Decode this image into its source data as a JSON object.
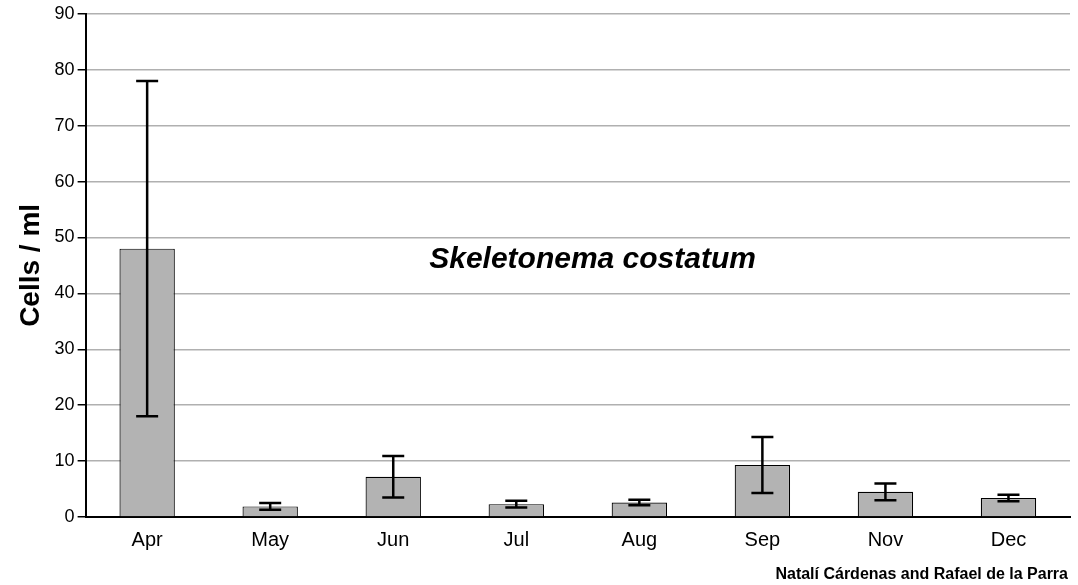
{
  "chart_data": {
    "type": "bar",
    "title": "Skeletonema costatum",
    "ylabel": "Cells / ml",
    "categories": [
      "Apr",
      "May",
      "Jun",
      "Jul",
      "Aug",
      "Sep",
      "Nov",
      "Dec"
    ],
    "values": [
      48,
      1.9,
      7.2,
      2.3,
      2.6,
      9.3,
      4.5,
      3.4
    ],
    "errors": [
      30,
      0.6,
      3.7,
      0.6,
      0.5,
      5,
      1.5,
      0.6
    ],
    "color": "#b3b3b3",
    "ylim": [
      0,
      90
    ],
    "yticks": [
      0,
      10,
      20,
      30,
      40,
      50,
      60,
      70,
      80,
      90
    ],
    "grid": "y",
    "legend": false,
    "annotations": [
      "Natalí Cárdenas and Rafael de la Parra"
    ]
  }
}
